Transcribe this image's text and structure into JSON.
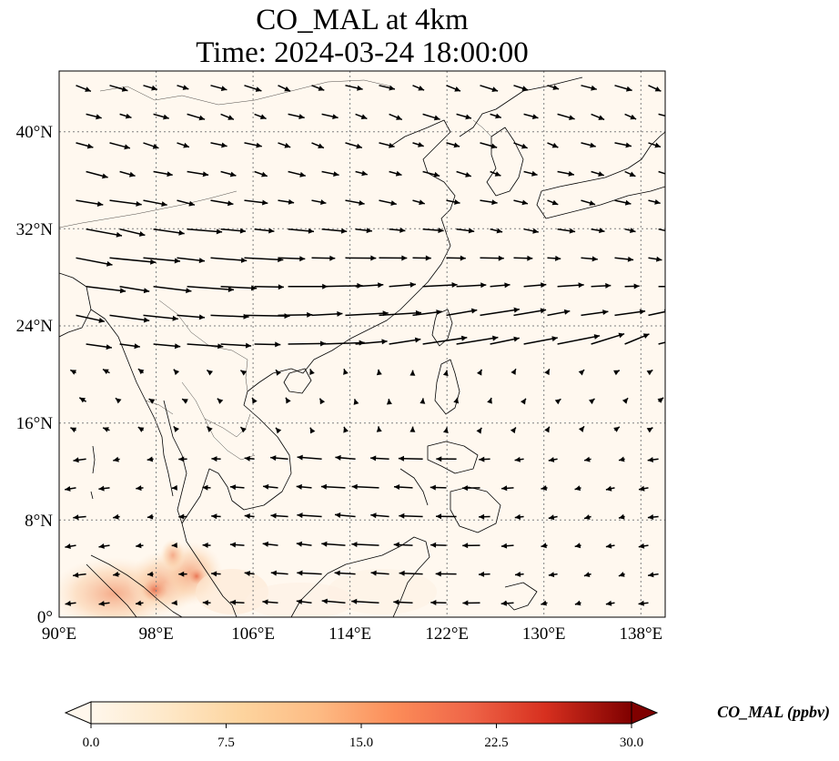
{
  "title": {
    "line1": "CO_MAL at 4km",
    "line2": "Time: 2024-03-24 18:00:00"
  },
  "map": {
    "lon_range": [
      90,
      140
    ],
    "lat_range": [
      0,
      45
    ],
    "lon_ticks": [
      "90°E",
      "98°E",
      "106°E",
      "114°E",
      "122°E",
      "130°E",
      "138°E"
    ],
    "lat_ticks": [
      "0°",
      "8°N",
      "16°N",
      "24°N",
      "32°N",
      "40°N"
    ],
    "lon_tick_values": [
      90,
      98,
      106,
      114,
      122,
      130,
      138
    ],
    "lat_tick_values": [
      0,
      8,
      16,
      24,
      32,
      40
    ],
    "gridlines": true,
    "background_color": "#fff8ef",
    "coastline_color": "#000000",
    "wind_vectors": true
  },
  "colorbar": {
    "label": "CO_MAL (ppbv)",
    "ticks": [
      "0.0",
      "7.5",
      "15.0",
      "22.5",
      "30.0"
    ],
    "tick_values": [
      0,
      7.5,
      15,
      22.5,
      30
    ],
    "range": [
      0,
      30
    ],
    "colormap": "OrRd",
    "colors": [
      "#fff7ec",
      "#fee8c8",
      "#fdd49e",
      "#fdbb84",
      "#fc8d59",
      "#ef6548",
      "#d7301f",
      "#b30000",
      "#7f0000"
    ],
    "extend": "both"
  }
}
